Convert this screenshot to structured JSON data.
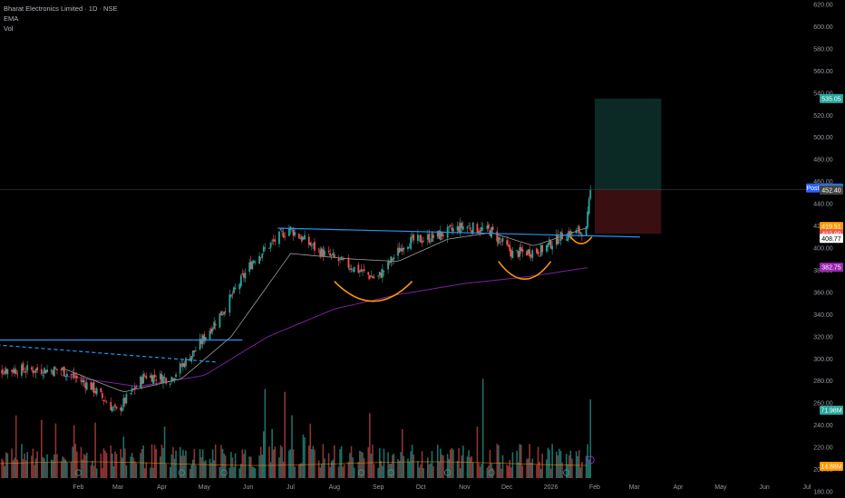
{
  "legend": {
    "title": "Bharat Electronics Limited · 1D · NSE",
    "ema_label": "EMA",
    "vol_label": "Vol"
  },
  "colors": {
    "background": "#000000",
    "up": "#26a69a",
    "down": "#ef5350",
    "trendline": "#2196f3",
    "cup": "#ff9800",
    "ema_fast": "#9e9e9e",
    "ema_slow": "#7b1fa2",
    "vol_ma": "#ff9800",
    "target_zone": "#0b2a26",
    "stop_zone": "#3a0f12",
    "post_badge": "#2962ff"
  },
  "chart_data": {
    "type": "candlestick",
    "title": "Bharat Electronics Limited · 1D · NSE",
    "ylim": [
      180,
      620
    ],
    "y_ticks": [
      "620.00",
      "600.00",
      "580.00",
      "560.00",
      "540.00",
      "520.00",
      "500.00",
      "480.00",
      "460.00",
      "440.00",
      "420.00",
      "400.00",
      "380.00",
      "360.00",
      "340.00",
      "320.00",
      "300.00",
      "280.00",
      "260.00",
      "240.00",
      "220.00",
      "200.00",
      "180.00"
    ],
    "x_ticks": [
      "Feb",
      "Mar",
      "Apr",
      "May",
      "Jun",
      "Jul",
      "Aug",
      "Sep",
      "Oct",
      "Nov",
      "Dec",
      "2026",
      "Feb",
      "Mar",
      "Apr",
      "May",
      "Jun",
      "Jul"
    ],
    "closes_anchor": [
      {
        "date": "2025-01-20",
        "close": 290
      },
      {
        "date": "2025-02-10",
        "close": 275
      },
      {
        "date": "2025-02-28",
        "close": 252
      },
      {
        "date": "2025-03-20",
        "close": 285
      },
      {
        "date": "2025-04-07",
        "close": 282
      },
      {
        "date": "2025-04-25",
        "close": 308
      },
      {
        "date": "2025-05-15",
        "close": 345
      },
      {
        "date": "2025-06-05",
        "close": 390
      },
      {
        "date": "2025-06-30",
        "close": 418
      },
      {
        "date": "2025-07-20",
        "close": 398
      },
      {
        "date": "2025-08-10",
        "close": 385
      },
      {
        "date": "2025-08-31",
        "close": 372
      },
      {
        "date": "2025-09-20",
        "close": 405
      },
      {
        "date": "2025-10-10",
        "close": 410
      },
      {
        "date": "2025-11-01",
        "close": 420
      },
      {
        "date": "2025-11-20",
        "close": 415
      },
      {
        "date": "2025-12-05",
        "close": 395
      },
      {
        "date": "2025-12-25",
        "close": 398
      },
      {
        "date": "2026-01-10",
        "close": 412
      },
      {
        "date": "2026-01-26",
        "close": 416
      },
      {
        "date": "2026-01-29",
        "close": 452.4
      }
    ],
    "ema_fast_anchor": [
      {
        "date": "2025-01-20",
        "close": 292
      },
      {
        "date": "2025-03-05",
        "close": 270
      },
      {
        "date": "2025-04-15",
        "close": 282
      },
      {
        "date": "2025-05-20",
        "close": 320
      },
      {
        "date": "2025-07-01",
        "close": 395
      },
      {
        "date": "2025-08-15",
        "close": 390
      },
      {
        "date": "2025-09-15",
        "close": 388
      },
      {
        "date": "2025-10-20",
        "close": 408
      },
      {
        "date": "2025-11-20",
        "close": 414
      },
      {
        "date": "2025-12-20",
        "close": 402
      },
      {
        "date": "2026-01-29",
        "close": 419.51
      }
    ],
    "ema_slow_anchor": [
      {
        "date": "2025-01-20",
        "close": 285
      },
      {
        "date": "2025-03-15",
        "close": 275
      },
      {
        "date": "2025-05-01",
        "close": 285
      },
      {
        "date": "2025-06-15",
        "close": 320
      },
      {
        "date": "2025-08-01",
        "close": 345
      },
      {
        "date": "2025-09-15",
        "close": 358
      },
      {
        "date": "2025-11-01",
        "close": 368
      },
      {
        "date": "2025-12-15",
        "close": 374
      },
      {
        "date": "2026-01-29",
        "close": 382.75
      }
    ],
    "volume_spike_dates": [
      "2025-06-13",
      "2025-06-27",
      "2025-11-14",
      "2026-01-29"
    ],
    "volume_ma_label": "14.88M",
    "price_labels": [
      {
        "text": "535.05",
        "value": 535.05,
        "color": "#26a69a"
      },
      {
        "text": "454.25",
        "value": 454.25,
        "color": "#2962ff"
      },
      {
        "text": "453.00",
        "value": 453.0,
        "color": "#26a69a"
      },
      {
        "text": "452.40",
        "value": 452.4,
        "color": "#444444"
      },
      {
        "text": "419.51",
        "value": 419.51,
        "color": "#ff9800"
      },
      {
        "text": "412.90",
        "value": 412.9,
        "color": "#ef5350"
      },
      {
        "text": "408.77",
        "value": 408.77,
        "color": "#ffffff"
      },
      {
        "text": "382.75",
        "value": 382.75,
        "color": "#9c27b0"
      },
      {
        "text": "71.98M",
        "value": null,
        "color": "#26a69a"
      },
      {
        "text": "14.88M",
        "value": null,
        "color": "#ff9800"
      }
    ],
    "post_label": "Post",
    "position": {
      "target": 535.05,
      "entry": 453.0,
      "stop": 412.9,
      "start": "2026-02-01",
      "end": "2026-03-20"
    },
    "trendlines": [
      {
        "name": "upper-resistance",
        "from": {
          "date": "2025-06-22",
          "price": 418
        },
        "to": {
          "date": "2026-03-05",
          "price": 410
        },
        "style": "solid"
      },
      {
        "name": "lower-resistance",
        "from": {
          "date": "2024-12-01",
          "price": 317
        },
        "to": {
          "date": "2025-05-28",
          "price": 317
        },
        "style": "solid"
      },
      {
        "name": "descending-dashed",
        "from": {
          "date": "2024-12-01",
          "price": 313
        },
        "to": {
          "date": "2025-05-10",
          "price": 297
        },
        "style": "dashed"
      }
    ],
    "cups": [
      {
        "from": "2025-08-01",
        "to": "2025-09-25",
        "bottom": 352,
        "top": 370
      },
      {
        "from": "2025-11-25",
        "to": "2026-01-01",
        "bottom": 372,
        "top": 388
      },
      {
        "from": "2026-01-15",
        "to": "2026-01-30",
        "bottom": 404,
        "top": 410
      }
    ]
  }
}
